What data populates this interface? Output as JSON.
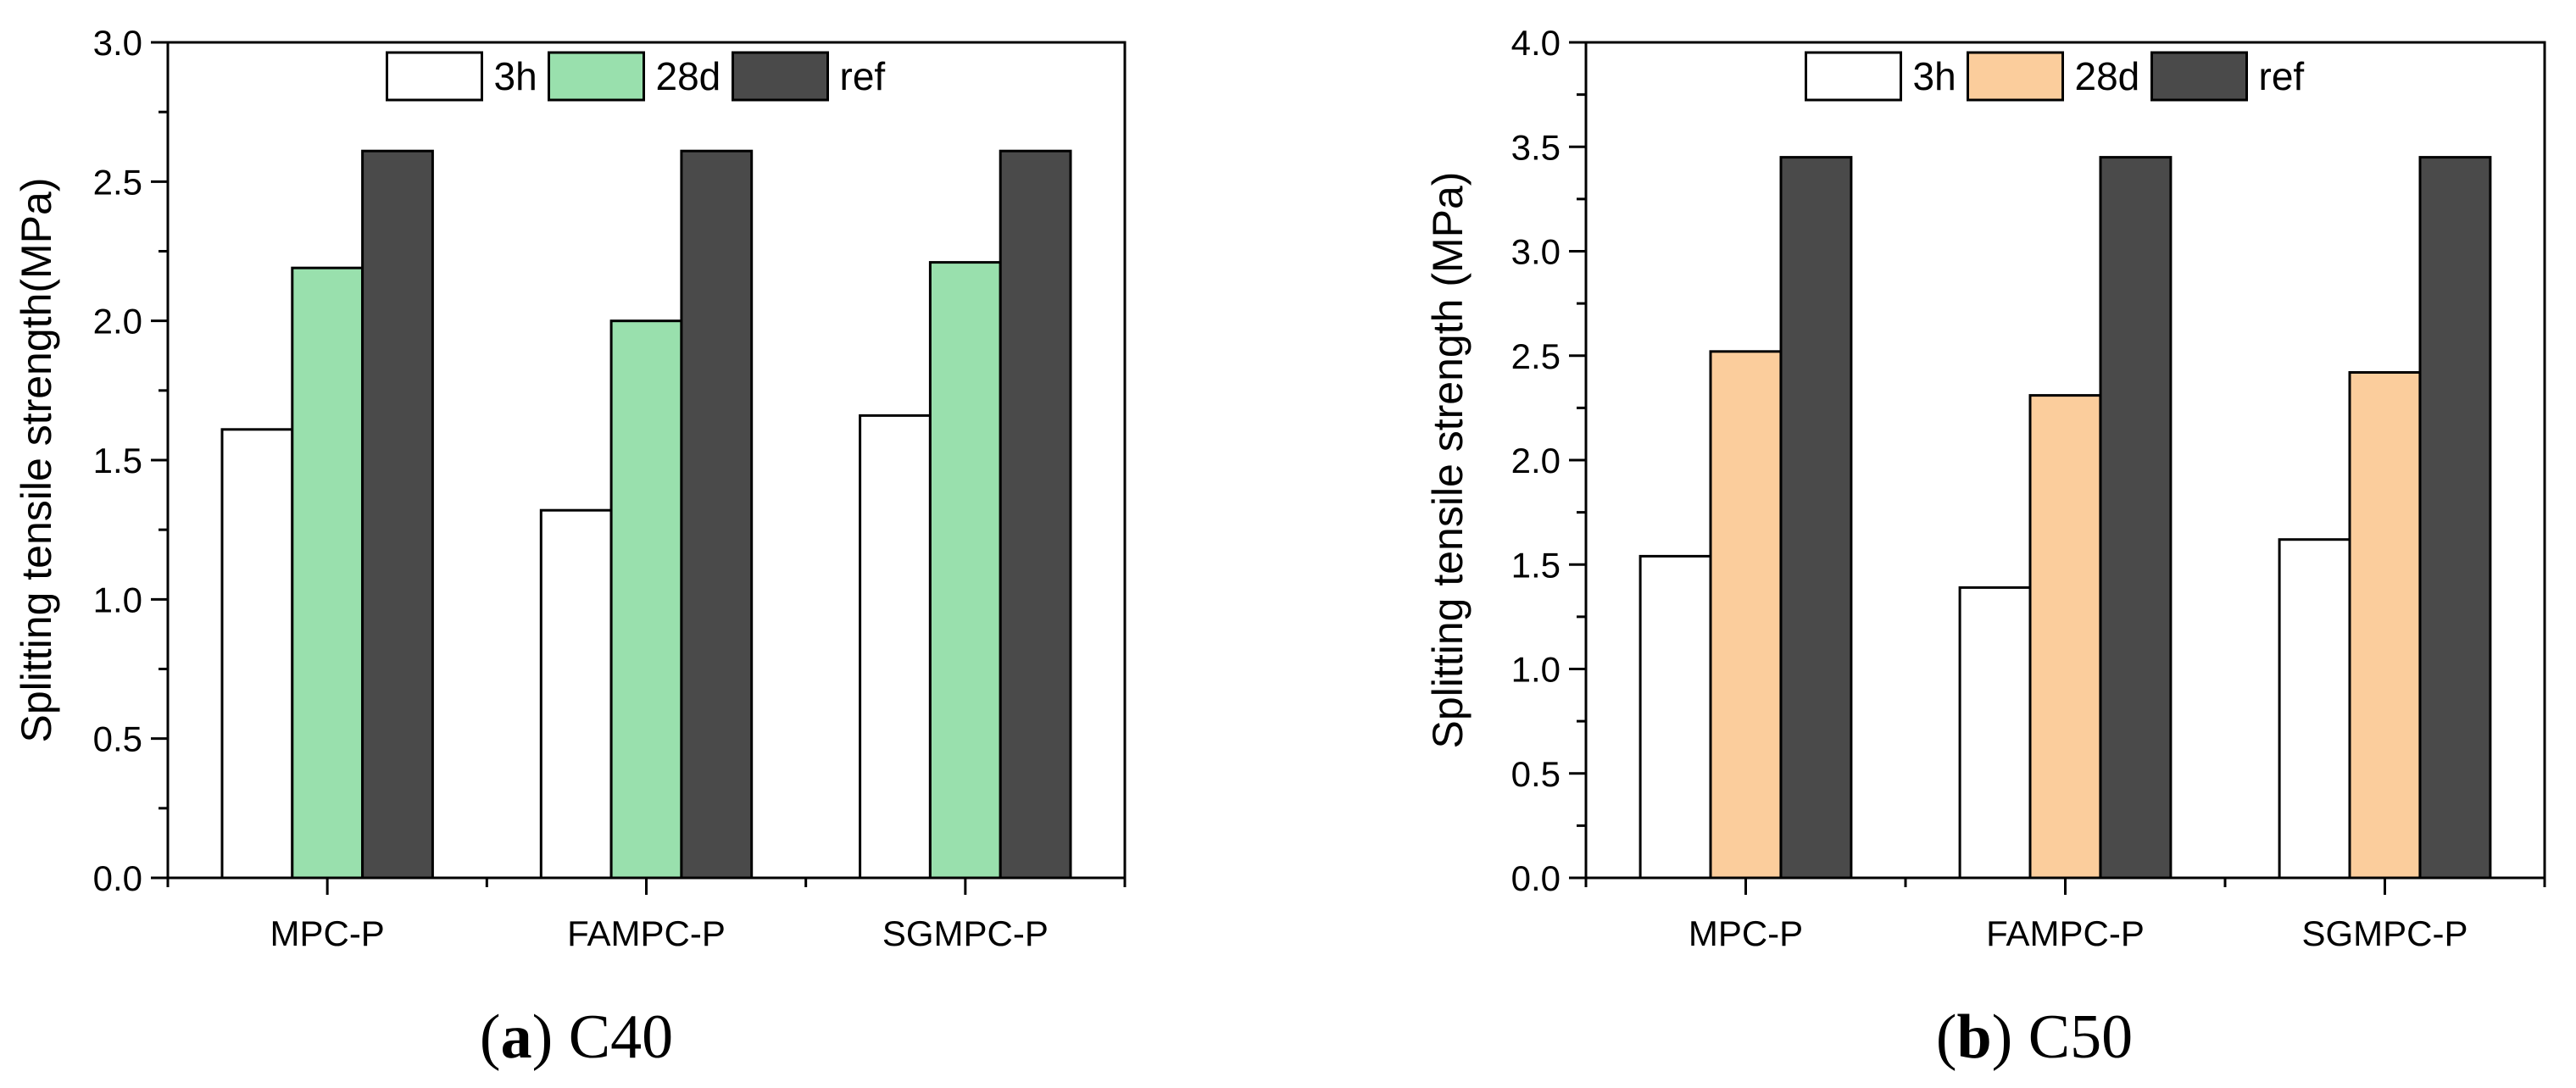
{
  "chart_data": [
    {
      "type": "bar",
      "panel_id": "a",
      "caption_grade": "C40",
      "categories": [
        "MPC-P",
        "FAMPC-P",
        "SGMPC-P"
      ],
      "series": [
        {
          "name": "3h",
          "color": "#ffffff",
          "values": [
            1.61,
            1.32,
            1.66
          ]
        },
        {
          "name": "28d",
          "color": "#99e0ad",
          "values": [
            2.19,
            2.0,
            2.21
          ]
        },
        {
          "name": "ref",
          "color": "#4a4a4a",
          "values": [
            2.61,
            2.61,
            2.61
          ]
        }
      ],
      "ylabel": "Splitting tensile strength(MPa)",
      "xlabel": "",
      "ylim": [
        0,
        3.0
      ],
      "yticks": [
        "0.0",
        "0.5",
        "1.0",
        "1.5",
        "2.0",
        "2.5",
        "3.0"
      ],
      "legend_position": "top-center",
      "grid": false
    },
    {
      "type": "bar",
      "panel_id": "b",
      "caption_grade": "C50",
      "categories": [
        "MPC-P",
        "FAMPC-P",
        "SGMPC-P"
      ],
      "series": [
        {
          "name": "3h",
          "color": "#ffffff",
          "values": [
            1.54,
            1.39,
            1.62
          ]
        },
        {
          "name": "28d",
          "color": "#fbcd9c",
          "values": [
            2.52,
            2.31,
            2.42
          ]
        },
        {
          "name": "ref",
          "color": "#4a4a4a",
          "values": [
            3.45,
            3.45,
            3.45
          ]
        }
      ],
      "ylabel": "Splitting tensile strength (MPa)",
      "xlabel": "",
      "ylim": [
        0,
        4.0
      ],
      "yticks": [
        "0.0",
        "0.5",
        "1.0",
        "1.5",
        "2.0",
        "2.5",
        "3.0",
        "3.5",
        "4.0"
      ],
      "legend_position": "top-center",
      "grid": false
    }
  ]
}
